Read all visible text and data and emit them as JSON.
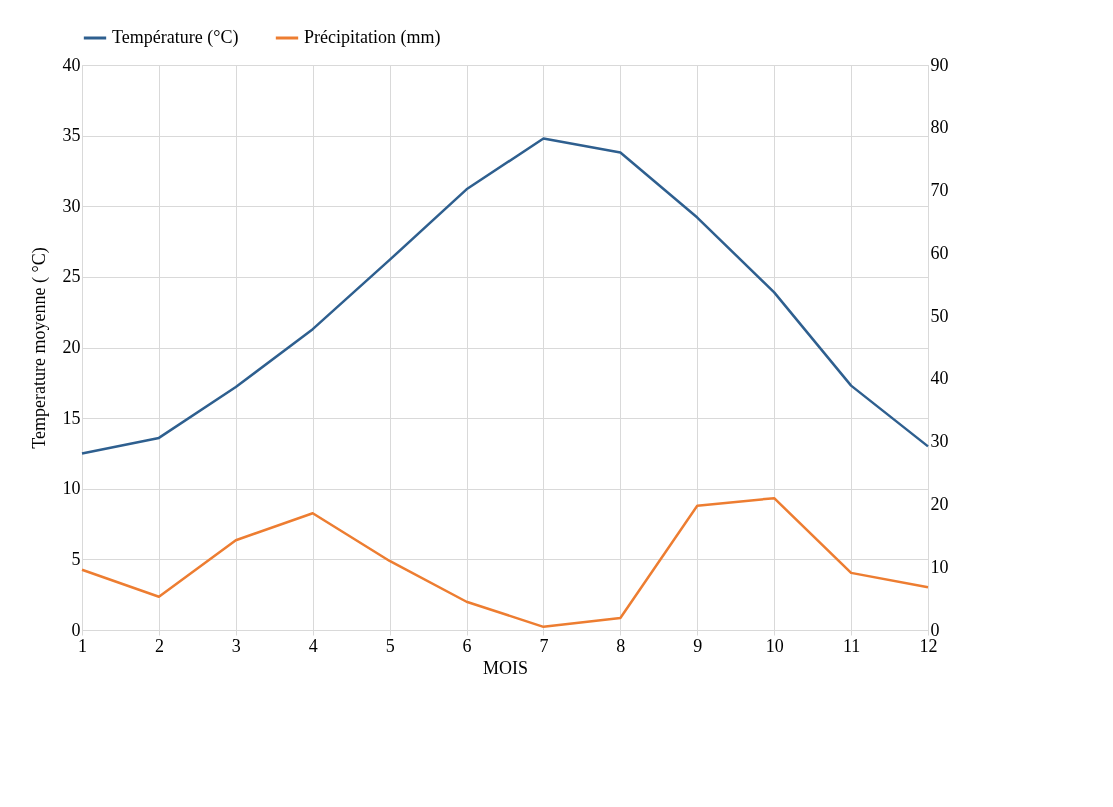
{
  "chart_data": {
    "type": "line",
    "xlabel": "MOIS",
    "ylabel": "Temperature moyenne ( °C)",
    "x": [
      1,
      2,
      3,
      4,
      5,
      6,
      7,
      8,
      9,
      10,
      11,
      12
    ],
    "xlim": [
      1,
      12
    ],
    "xticks": [
      1,
      2,
      3,
      4,
      5,
      6,
      7,
      8,
      9,
      10,
      11,
      12
    ],
    "ylim": [
      0,
      40
    ],
    "yticks": [
      0,
      5,
      10,
      15,
      20,
      25,
      30,
      35,
      40
    ],
    "y2lim": [
      0,
      90
    ],
    "y2ticks": [
      0,
      10,
      20,
      30,
      40,
      50,
      60,
      70,
      80,
      90
    ],
    "grid": true,
    "legend": "top",
    "marker": "none",
    "line_style": "solid",
    "series": [
      {
        "name": "Température (°C)",
        "color": "#2e5f8f",
        "values": [
          12.5,
          13.6,
          17.2,
          21.3,
          26.2,
          31.2,
          34.8,
          33.8,
          29.2,
          23.9,
          17.3,
          13.0
        ]
      },
      {
        "name": "Précipitation (mm)",
        "color": "#ed7d31",
        "axis": "y2",
        "values": [
          9.6,
          5.3,
          14.3,
          18.6,
          11.0,
          4.5,
          0.5,
          1.9,
          19.8,
          21.0,
          9.1,
          6.8
        ]
      }
    ]
  }
}
